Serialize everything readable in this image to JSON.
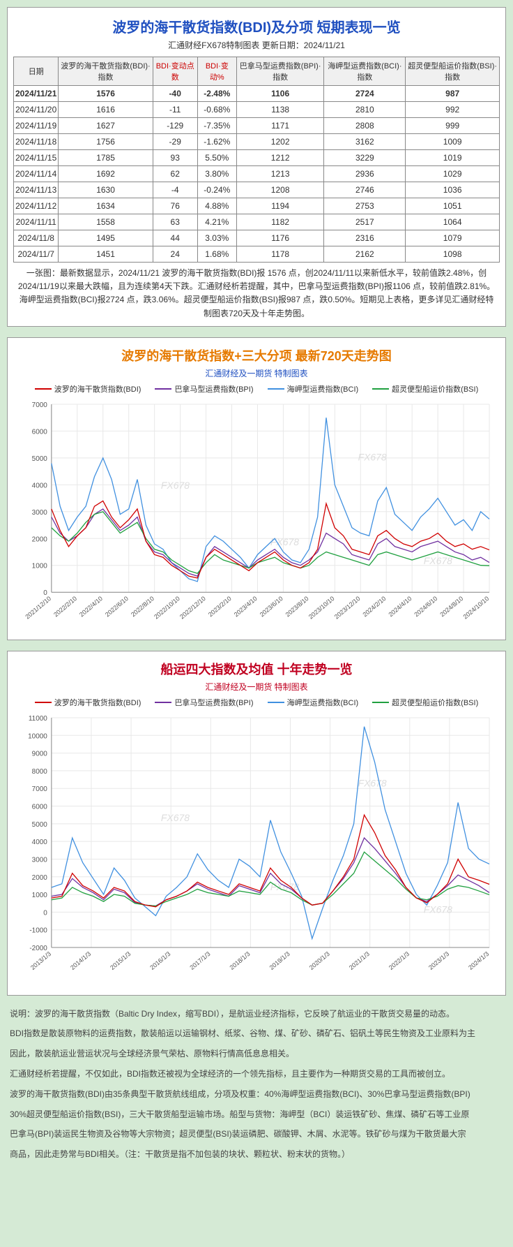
{
  "table_panel": {
    "title": "波罗的海干散货指数(BDI)及分项  短期表现一览",
    "subtitle": "汇通财经FX678特制图表    更新日期：2024/11/21",
    "columns": [
      {
        "label": "日期",
        "red": false
      },
      {
        "label": "波罗的海干散货指数(BDI)·指数",
        "red": false
      },
      {
        "label": "BDI·变动点数",
        "red": true
      },
      {
        "label": "BDI·变动%",
        "red": true
      },
      {
        "label": "巴拿马型运费指数(BPI)·指数",
        "red": false
      },
      {
        "label": "海岬型运费指数(BCI)·指数",
        "red": false
      },
      {
        "label": "超灵便型船运价指数(BSI)·指数",
        "red": false
      }
    ],
    "rows": [
      {
        "bold": true,
        "cells": [
          "2024/11/21",
          "1576",
          "-40",
          "-2.48%",
          "1106",
          "2724",
          "987"
        ]
      },
      {
        "bold": false,
        "cells": [
          "2024/11/20",
          "1616",
          "-11",
          "-0.68%",
          "1138",
          "2810",
          "992"
        ]
      },
      {
        "bold": false,
        "cells": [
          "2024/11/19",
          "1627",
          "-129",
          "-7.35%",
          "1171",
          "2808",
          "999"
        ]
      },
      {
        "bold": false,
        "cells": [
          "2024/11/18",
          "1756",
          "-29",
          "-1.62%",
          "1202",
          "3162",
          "1009"
        ]
      },
      {
        "bold": false,
        "cells": [
          "2024/11/15",
          "1785",
          "93",
          "5.50%",
          "1212",
          "3229",
          "1019"
        ]
      },
      {
        "bold": false,
        "cells": [
          "2024/11/14",
          "1692",
          "62",
          "3.80%",
          "1213",
          "2936",
          "1029"
        ]
      },
      {
        "bold": false,
        "cells": [
          "2024/11/13",
          "1630",
          "-4",
          "-0.24%",
          "1208",
          "2746",
          "1036"
        ]
      },
      {
        "bold": false,
        "cells": [
          "2024/11/12",
          "1634",
          "76",
          "4.88%",
          "1194",
          "2753",
          "1051"
        ]
      },
      {
        "bold": false,
        "cells": [
          "2024/11/11",
          "1558",
          "63",
          "4.21%",
          "1182",
          "2517",
          "1064"
        ]
      },
      {
        "bold": false,
        "cells": [
          "2024/11/8",
          "1495",
          "44",
          "3.03%",
          "1176",
          "2316",
          "1079"
        ]
      },
      {
        "bold": false,
        "cells": [
          "2024/11/7",
          "1451",
          "24",
          "1.68%",
          "1178",
          "2162",
          "1098"
        ]
      }
    ],
    "desc": "一张图：最新数据显示，2024/11/21 波罗的海干散货指数(BDI)报 1576 点，创2024/11/11以来新低水平，较前值跌2.48%，创2024/11/19以来最大跌幅，且为连续第4天下跌。汇通财经析若提醒，其中，巴拿马型运费指数(BPI)报1106 点，较前值跌2.81%。海岬型运费指数(BCI)报2724 点，跌3.06%。超灵便型船运价指数(BSI)报987 点，跌0.50%。短期见上表格，更多详见汇通财经特制图表720天及十年走势图。"
  },
  "chart720": {
    "title": "波罗的海干散货指数+三大分项  最新720天走势图",
    "subtitle": "汇通财经及一期货  特制图表",
    "legend": [
      {
        "label": "波罗的海干散货指数(BDI)",
        "color": "#d00000"
      },
      {
        "label": "巴拿马型运费指数(BPI)",
        "color": "#7030a0"
      },
      {
        "label": "海岬型运费指数(BCI)",
        "color": "#4090e0"
      },
      {
        "label": "超灵便型船运价指数(BSI)",
        "color": "#20a040"
      }
    ],
    "y": {
      "min": 0,
      "max": 7000,
      "step": 1000,
      "ticks": [
        0,
        1000,
        2000,
        3000,
        4000,
        5000,
        6000,
        7000
      ]
    },
    "x_labels": [
      "2021/12/10",
      "2022/2/10",
      "2022/4/10",
      "2022/6/10",
      "2022/8/10",
      "2022/10/10",
      "2022/12/10",
      "2023/2/10",
      "2023/4/10",
      "2023/6/10",
      "2023/8/10",
      "2023/10/10",
      "2023/12/10",
      "2024/2/10",
      "2024/4/10",
      "2024/6/10",
      "2024/8/10",
      "2024/10/10"
    ],
    "grid_color": "#e8e8e8",
    "axis_color": "#888",
    "watermark": "FX678",
    "series": {
      "bdi": [
        3100,
        2300,
        1700,
        2100,
        2400,
        3200,
        3400,
        2800,
        2400,
        2700,
        3100,
        1900,
        1400,
        1300,
        1000,
        800,
        600,
        530,
        1300,
        1600,
        1400,
        1200,
        1000,
        800,
        1100,
        1300,
        1500,
        1200,
        1000,
        900,
        1100,
        1600,
        3300,
        2400,
        2100,
        1600,
        1500,
        1400,
        2100,
        2300,
        2000,
        1800,
        1700,
        1900,
        2000,
        2200,
        1900,
        1700,
        1800,
        1600,
        1700,
        1576
      ],
      "bpi": [
        2800,
        2200,
        1900,
        2100,
        2400,
        2900,
        3100,
        2700,
        2300,
        2500,
        2800,
        1900,
        1500,
        1400,
        1100,
        900,
        700,
        600,
        1300,
        1700,
        1500,
        1300,
        1100,
        900,
        1200,
        1400,
        1600,
        1300,
        1100,
        1000,
        1200,
        1500,
        2200,
        2000,
        1800,
        1400,
        1300,
        1200,
        1800,
        2000,
        1700,
        1600,
        1500,
        1700,
        1800,
        1900,
        1700,
        1500,
        1400,
        1200,
        1300,
        1106
      ],
      "bci": [
        4800,
        3200,
        2300,
        2800,
        3200,
        4300,
        5000,
        4200,
        2900,
        3100,
        4200,
        2500,
        1800,
        1600,
        1100,
        800,
        500,
        400,
        1700,
        2100,
        1900,
        1600,
        1300,
        900,
        1400,
        1700,
        2000,
        1500,
        1200,
        1100,
        1600,
        2800,
        6500,
        4000,
        3200,
        2400,
        2200,
        2100,
        3400,
        3900,
        2900,
        2600,
        2300,
        2800,
        3100,
        3500,
        3000,
        2500,
        2700,
        2300,
        3000,
        2724
      ],
      "bsi": [
        2400,
        2100,
        1900,
        2200,
        2600,
        2900,
        3000,
        2600,
        2200,
        2400,
        2600,
        2000,
        1600,
        1500,
        1200,
        1000,
        800,
        700,
        1100,
        1400,
        1200,
        1100,
        1000,
        900,
        1100,
        1200,
        1300,
        1100,
        1000,
        900,
        1000,
        1300,
        1500,
        1400,
        1300,
        1200,
        1100,
        1000,
        1400,
        1500,
        1400,
        1300,
        1200,
        1300,
        1400,
        1500,
        1400,
        1300,
        1200,
        1100,
        1000,
        987
      ]
    }
  },
  "chart10y": {
    "title": "船运四大指数及均值 十年走势一览",
    "subtitle": "汇通财经及一期货 特制图表",
    "legend": [
      {
        "label": "波罗的海干散货指数(BDI)",
        "color": "#d00000"
      },
      {
        "label": "巴拿马型运费指数(BPI)",
        "color": "#7030a0"
      },
      {
        "label": "海岬型运费指数(BCI)",
        "color": "#4090e0"
      },
      {
        "label": "超灵便型船运价指数(BSI)",
        "color": "#20a040"
      }
    ],
    "y": {
      "min": -2000,
      "max": 11000,
      "step": 1000,
      "ticks": [
        -2000,
        -1000,
        0,
        1000,
        2000,
        3000,
        4000,
        5000,
        6000,
        7000,
        8000,
        9000,
        10000,
        11000
      ]
    },
    "x_labels": [
      "2013/1/3",
      "2014/1/3",
      "2015/1/3",
      "2016/1/3",
      "2017/1/3",
      "2018/1/3",
      "2019/1/3",
      "2020/1/3",
      "2021/1/3",
      "2022/1/3",
      "2023/1/3",
      "2024/1/3"
    ],
    "grid_color": "#e8e8e8",
    "axis_color": "#888",
    "watermark": "FX678",
    "series": {
      "bdi": [
        800,
        900,
        2200,
        1500,
        1200,
        800,
        1400,
        1200,
        600,
        400,
        300,
        700,
        900,
        1200,
        1700,
        1400,
        1200,
        1000,
        1600,
        1400,
        1200,
        2500,
        1800,
        1400,
        800,
        400,
        500,
        1200,
        2000,
        3000,
        5500,
        4500,
        3200,
        2400,
        1400,
        800,
        530,
        1000,
        1600,
        3000,
        2000,
        1800,
        1576
      ],
      "bpi": [
        900,
        1000,
        1900,
        1400,
        1100,
        700,
        1300,
        1100,
        550,
        400,
        350,
        700,
        900,
        1200,
        1600,
        1300,
        1100,
        900,
        1500,
        1300,
        1100,
        2200,
        1600,
        1300,
        800,
        400,
        500,
        1200,
        1900,
        2800,
        4200,
        3600,
        2900,
        2200,
        1400,
        800,
        600,
        1000,
        1500,
        2100,
        1800,
        1500,
        1106
      ],
      "bci": [
        1400,
        1600,
        4200,
        2800,
        1900,
        1000,
        2500,
        1800,
        800,
        300,
        -200,
        900,
        1400,
        2000,
        3300,
        2400,
        1800,
        1400,
        3000,
        2600,
        2000,
        5200,
        3400,
        2200,
        900,
        -1500,
        200,
        1800,
        3200,
        5000,
        10500,
        8500,
        5800,
        4000,
        2200,
        1000,
        400,
        1500,
        2800,
        6200,
        3600,
        3000,
        2724
      ],
      "bsi": [
        700,
        800,
        1400,
        1100,
        900,
        600,
        1000,
        900,
        500,
        400,
        350,
        600,
        800,
        1000,
        1300,
        1100,
        1000,
        900,
        1200,
        1100,
        1000,
        1700,
        1300,
        1100,
        700,
        400,
        500,
        1000,
        1600,
        2200,
        3400,
        2900,
        2400,
        1900,
        1300,
        800,
        700,
        900,
        1300,
        1500,
        1400,
        1200,
        987
      ]
    }
  },
  "footer": {
    "p1": "说明：波罗的海干散货指数（Baltic Dry Index，缩写BDI），是航运业经济指标，它反映了航运业的干散货交易量的动态。",
    "p2": "BDI指数是散装原物料的运费指数，散装船运以运输钢材、纸浆、谷物、煤、矿砂、磷矿石、铝矾土等民生物资及工业原料为主",
    "p3": "因此，散装航运业营运状况与全球经济景气荣枯、原物料行情高低息息相关。",
    "p4": "汇通财经析若提醒，不仅如此，BDI指数还被视为全球经济的一个领先指标，且主要作为一种期货交易的工具而被创立。",
    "p5": "波罗的海干散货指数(BDI)由35条典型干散货航线组成，分项及权重：40%海岬型运费指数(BCI)、30%巴拿马型运费指数(BPI)",
    "p6": "30%超灵便型船运价指数(BSI)，三大干散货船型运输市场。船型与货物：海岬型（BCI）装运铁矿砂、焦煤、磷矿石等工业原",
    "p7": "巴拿马(BPI)装运民生物资及谷物等大宗物资；超灵便型(BSI)装运磷肥、碳酸钾、木屑、水泥等。铁矿砂与煤为干散货最大宗",
    "p8": "商品，因此走势常与BDI相关。（注：干散货是指不加包装的块状、颗粒状、粉末状的货物。）"
  }
}
